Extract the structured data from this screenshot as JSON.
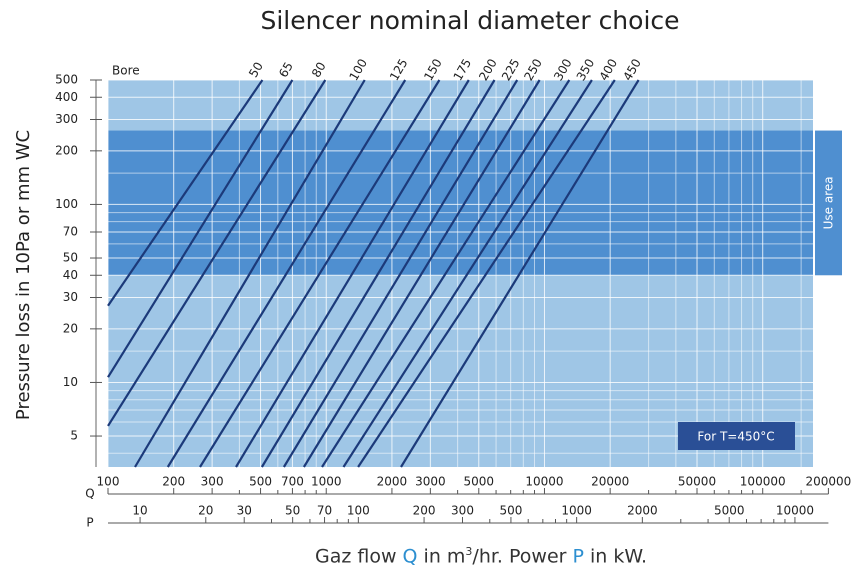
{
  "chart_data": {
    "type": "line",
    "title": "Silencer nominal diameter choice",
    "y_label": "Pressure loss in 10Pa or mm WC",
    "x_label_parts": [
      "Gaz flow ",
      "Q",
      " in m",
      "3",
      "/hr. Power ",
      "P",
      " in kW."
    ],
    "legend_title": "Bore",
    "note": "For T=450°C",
    "log_x": true,
    "log_y": true,
    "grid": true,
    "xlim": [
      100,
      170000
    ],
    "ylim": [
      3.35,
      500
    ],
    "x_axis_name": "Q",
    "xticks": [
      100,
      200,
      300,
      500,
      700,
      1000,
      2000,
      3000,
      5000,
      10000,
      20000,
      50000,
      100000,
      200000
    ],
    "xminor": [
      400,
      600,
      800,
      900,
      4000,
      6000,
      7000,
      8000,
      9000,
      30000,
      40000,
      60000,
      70000,
      80000,
      90000,
      150000
    ],
    "yticks": [
      5,
      10,
      20,
      30,
      40,
      50,
      70,
      100,
      200,
      300,
      400,
      500
    ],
    "yminor": [
      4,
      6,
      7,
      8,
      9,
      15,
      60,
      80,
      90,
      150
    ],
    "p_axis": {
      "name": "P",
      "lim": [
        7.13,
        12100
      ],
      "ticks": [
        10,
        20,
        30,
        50,
        70,
        100,
        200,
        300,
        500,
        1000,
        2000,
        5000,
        10000
      ],
      "minor": [
        40,
        60,
        80,
        90,
        400,
        600,
        700,
        800,
        900,
        3000,
        4000,
        6000,
        7000,
        8000,
        9000
      ]
    },
    "use_area": {
      "label": "Use area",
      "range": [
        40,
        260
      ]
    },
    "line_color": "#1c3a7a",
    "background": "#9fc6e6",
    "area_color": "#4f8fd0",
    "series": [
      {
        "name": "50",
        "x": [
          100,
          510
        ],
        "values": [
          27,
          500
        ]
      },
      {
        "name": "65",
        "x": [
          100,
          700
        ],
        "values": [
          10.7,
          500
        ]
      },
      {
        "name": "80",
        "x": [
          100,
          990
        ],
        "values": [
          5.7,
          500
        ]
      },
      {
        "name": "100",
        "x": [
          133,
          1500
        ],
        "values": [
          3.35,
          500
        ]
      },
      {
        "name": "125",
        "x": [
          188,
          2300
        ],
        "values": [
          3.35,
          500
        ]
      },
      {
        "name": "150",
        "x": [
          264,
          3300
        ],
        "values": [
          3.35,
          500
        ]
      },
      {
        "name": "175",
        "x": [
          386,
          4500
        ],
        "values": [
          3.35,
          500
        ]
      },
      {
        "name": "200",
        "x": [
          507,
          5900
        ],
        "values": [
          3.35,
          500
        ]
      },
      {
        "name": "225",
        "x": [
          640,
          7500
        ],
        "values": [
          3.35,
          500
        ]
      },
      {
        "name": "250",
        "x": [
          790,
          9500
        ],
        "values": [
          3.35,
          500
        ]
      },
      {
        "name": "300",
        "x": [
          956,
          13000
        ],
        "values": [
          3.35,
          500
        ]
      },
      {
        "name": "350",
        "x": [
          1200,
          16500
        ],
        "values": [
          3.35,
          500
        ]
      },
      {
        "name": "400",
        "x": [
          1400,
          21000
        ],
        "values": [
          3.35,
          500
        ]
      },
      {
        "name": "450",
        "x": [
          2200,
          27000
        ],
        "values": [
          3.35,
          500
        ]
      }
    ]
  }
}
